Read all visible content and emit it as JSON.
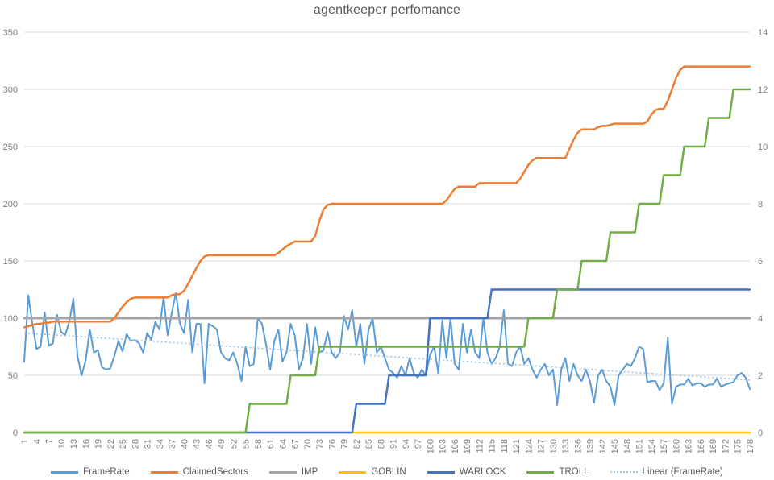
{
  "chart_data": {
    "type": "line",
    "title": "agentkeeper perfomance",
    "n": 178,
    "x_tick_labels": [
      1,
      4,
      7,
      10,
      13,
      16,
      19,
      22,
      25,
      28,
      31,
      34,
      37,
      40,
      43,
      46,
      49,
      52,
      55,
      58,
      61,
      64,
      67,
      70,
      73,
      76,
      79,
      82,
      85,
      88,
      91,
      94,
      97,
      100,
      103,
      106,
      109,
      112,
      115,
      118,
      121,
      124,
      127,
      130,
      133,
      136,
      139,
      142,
      145,
      148,
      151,
      154,
      157,
      160,
      163,
      166,
      169,
      172,
      175,
      178
    ],
    "y_left_ticks": [
      0,
      50,
      100,
      150,
      200,
      250,
      300,
      350
    ],
    "y_right_ticks": [
      0,
      2,
      4,
      6,
      8,
      10,
      12,
      14
    ],
    "y_left_max": 350,
    "y_right_max": 14,
    "grid": "horizontal",
    "legend_position": "bottom",
    "colors": {
      "grid": "#D9D9D9",
      "title": "#595959",
      "tick_text": "#808080"
    },
    "series": [
      {
        "name": "FrameRate",
        "color": "#5B9BD5",
        "axis": "left",
        "width": 2,
        "values": [
          62,
          120,
          95,
          73,
          75,
          105,
          76,
          78,
          103,
          88,
          85,
          97,
          117,
          67,
          50,
          63,
          90,
          70,
          72,
          57,
          55,
          56,
          67,
          80,
          71,
          86,
          80,
          81,
          78,
          70,
          87,
          81,
          97,
          90,
          118,
          85,
          105,
          122,
          95,
          87,
          116,
          70,
          95,
          95,
          43,
          95,
          93,
          90,
          70,
          65,
          63,
          70,
          60,
          45,
          75,
          58,
          60,
          100,
          95,
          77,
          55,
          80,
          90,
          62,
          70,
          95,
          85,
          55,
          65,
          95,
          60,
          92,
          70,
          72,
          88,
          70,
          65,
          70,
          102,
          90,
          107,
          75,
          95,
          60,
          90,
          100,
          70,
          75,
          65,
          55,
          52,
          48,
          58,
          50,
          65,
          52,
          48,
          55,
          50,
          68,
          75,
          52,
          98,
          65,
          100,
          60,
          55,
          95,
          70,
          90,
          70,
          65,
          100,
          70,
          60,
          65,
          75,
          107,
          60,
          58,
          70,
          75,
          60,
          65,
          55,
          48,
          55,
          60,
          50,
          55,
          24,
          55,
          65,
          45,
          60,
          50,
          45,
          55,
          45,
          26,
          50,
          55,
          45,
          40,
          24,
          50,
          55,
          60,
          58,
          65,
          75,
          73,
          44,
          45,
          45,
          37,
          43,
          83,
          25,
          40,
          42,
          42,
          47,
          41,
          43,
          43,
          40,
          42,
          42,
          47,
          40,
          42,
          43,
          44,
          50,
          52,
          48,
          38
        ]
      },
      {
        "name": "ClaimedSectors",
        "color": "#ED7D31",
        "axis": "left",
        "width": 2.5,
        "values": [
          92,
          93,
          94,
          95,
          95,
          96,
          96,
          97,
          97,
          97,
          97,
          97,
          97,
          97,
          97,
          97,
          97,
          97,
          97,
          97,
          97,
          97,
          100,
          105,
          110,
          114,
          117,
          118,
          118,
          118,
          118,
          118,
          118,
          118,
          118,
          118,
          120,
          121,
          121,
          124,
          130,
          137,
          144,
          150,
          154,
          155,
          155,
          155,
          155,
          155,
          155,
          155,
          155,
          155,
          155,
          155,
          155,
          155,
          155,
          155,
          155,
          155,
          157,
          160,
          163,
          165,
          167,
          167,
          167,
          167,
          167,
          172,
          185,
          195,
          199,
          200,
          200,
          200,
          200,
          200,
          200,
          200,
          200,
          200,
          200,
          200,
          200,
          200,
          200,
          200,
          200,
          200,
          200,
          200,
          200,
          200,
          200,
          200,
          200,
          200,
          200,
          200,
          200,
          203,
          208,
          213,
          215,
          215,
          215,
          215,
          215,
          218,
          218,
          218,
          218,
          218,
          218,
          218,
          218,
          218,
          218,
          222,
          228,
          234,
          238,
          240,
          240,
          240,
          240,
          240,
          240,
          240,
          240,
          248,
          256,
          262,
          265,
          265,
          265,
          265,
          267,
          268,
          268,
          269,
          270,
          270,
          270,
          270,
          270,
          270,
          270,
          270,
          272,
          278,
          282,
          283,
          283,
          290,
          300,
          310,
          317,
          320,
          320,
          320,
          320,
          320,
          320,
          320,
          320,
          320,
          320,
          320,
          320,
          320,
          320,
          320,
          320,
          320
        ]
      },
      {
        "name": "IMP",
        "color": "#A5A5A5",
        "axis": "right",
        "width": 3,
        "base": 4,
        "steps": []
      },
      {
        "name": "GOBLIN",
        "color": "#FFC000",
        "axis": "right",
        "width": 2.5,
        "base": 0,
        "steps": []
      },
      {
        "name": "WARLOCK",
        "color": "#4472C4",
        "axis": "right",
        "width": 2.5,
        "base": 0,
        "steps": [
          [
            82,
            89,
            1
          ],
          [
            90,
            99,
            2
          ],
          [
            100,
            114,
            4
          ],
          [
            115,
            178,
            5
          ]
        ]
      },
      {
        "name": "TROLL",
        "color": "#70AD47",
        "axis": "right",
        "width": 2.5,
        "base": 0,
        "steps": [
          [
            56,
            65,
            1
          ],
          [
            66,
            72,
            2
          ],
          [
            73,
            123,
            3
          ],
          [
            124,
            130,
            4
          ],
          [
            131,
            136,
            5
          ],
          [
            137,
            143,
            6
          ],
          [
            144,
            150,
            7
          ],
          [
            151,
            156,
            8
          ],
          [
            157,
            161,
            9
          ],
          [
            162,
            167,
            10
          ],
          [
            168,
            173,
            11
          ],
          [
            174,
            178,
            12
          ]
        ]
      }
    ],
    "trendline": {
      "label": "Linear (FrameRate)",
      "color": "#9CC3E5",
      "axis": "left",
      "start": 87,
      "end": 46
    },
    "draw_order": [
      "FrameRate",
      "trend",
      "IMP",
      "GOBLIN",
      "ClaimedSectors",
      "WARLOCK",
      "TROLL"
    ],
    "legend": [
      {
        "label": "FrameRate",
        "color": "#5B9BD5",
        "style": "solid"
      },
      {
        "label": "ClaimedSectors",
        "color": "#ED7D31",
        "style": "solid"
      },
      {
        "label": "IMP",
        "color": "#A5A5A5",
        "style": "solid"
      },
      {
        "label": "GOBLIN",
        "color": "#FFC000",
        "style": "solid"
      },
      {
        "label": "WARLOCK",
        "color": "#4472C4",
        "style": "solid"
      },
      {
        "label": "TROLL",
        "color": "#70AD47",
        "style": "solid"
      },
      {
        "label": "Linear (FrameRate)",
        "color": "#9CC3E5",
        "style": "dotted"
      }
    ]
  }
}
